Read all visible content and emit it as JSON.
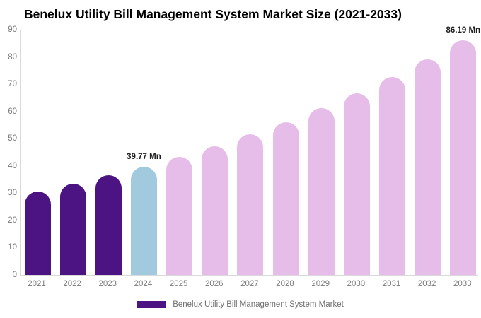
{
  "title": "Benelux Utility Bill Management System Market Size (2021-2033)",
  "legend": {
    "label": "Benelux Utility Bill Management System Market"
  },
  "colors": {
    "historical": "#4c1383",
    "current": "#a2cade",
    "forecast": "#e5bde8",
    "axis_line": "#d9d9d9",
    "tick_text": "#7a7a7a",
    "value_label_text": "#1f1f1f",
    "legend_text": "#6f6f6f",
    "background": "#ffffff"
  },
  "y_axis": {
    "ticks": [
      0,
      10,
      20,
      30,
      40,
      50,
      60,
      70,
      80,
      90
    ]
  },
  "chart_data": {
    "type": "bar",
    "title": "Benelux Utility Bill Management System Market Size (2021-2033)",
    "xlabel": "",
    "ylabel": "",
    "ylim": [
      0,
      90
    ],
    "grid": false,
    "legend_position": "bottom",
    "unit": "Mn",
    "series_name": "Benelux Utility Bill Management System Market",
    "categories": [
      "2021",
      "2022",
      "2023",
      "2024",
      "2025",
      "2026",
      "2027",
      "2028",
      "2029",
      "2030",
      "2031",
      "2032",
      "2033"
    ],
    "values": [
      30.7,
      33.5,
      36.5,
      39.77,
      43.3,
      47.2,
      51.5,
      56.1,
      61.1,
      66.6,
      72.6,
      79.1,
      86.19
    ],
    "bars": [
      {
        "year": "2021",
        "value": 30.7,
        "role": "historical",
        "label": ""
      },
      {
        "year": "2022",
        "value": 33.5,
        "role": "historical",
        "label": ""
      },
      {
        "year": "2023",
        "value": 36.5,
        "role": "historical",
        "label": ""
      },
      {
        "year": "2024",
        "value": 39.77,
        "role": "current",
        "label": "39.77 Mn"
      },
      {
        "year": "2025",
        "value": 43.3,
        "role": "forecast",
        "label": ""
      },
      {
        "year": "2026",
        "value": 47.2,
        "role": "forecast",
        "label": ""
      },
      {
        "year": "2027",
        "value": 51.5,
        "role": "forecast",
        "label": ""
      },
      {
        "year": "2028",
        "value": 56.1,
        "role": "forecast",
        "label": ""
      },
      {
        "year": "2029",
        "value": 61.1,
        "role": "forecast",
        "label": ""
      },
      {
        "year": "2030",
        "value": 66.6,
        "role": "forecast",
        "label": ""
      },
      {
        "year": "2031",
        "value": 72.6,
        "role": "forecast",
        "label": ""
      },
      {
        "year": "2032",
        "value": 79.1,
        "role": "forecast",
        "label": ""
      },
      {
        "year": "2033",
        "value": 86.19,
        "role": "forecast",
        "label": "86.19 Mn"
      }
    ]
  }
}
